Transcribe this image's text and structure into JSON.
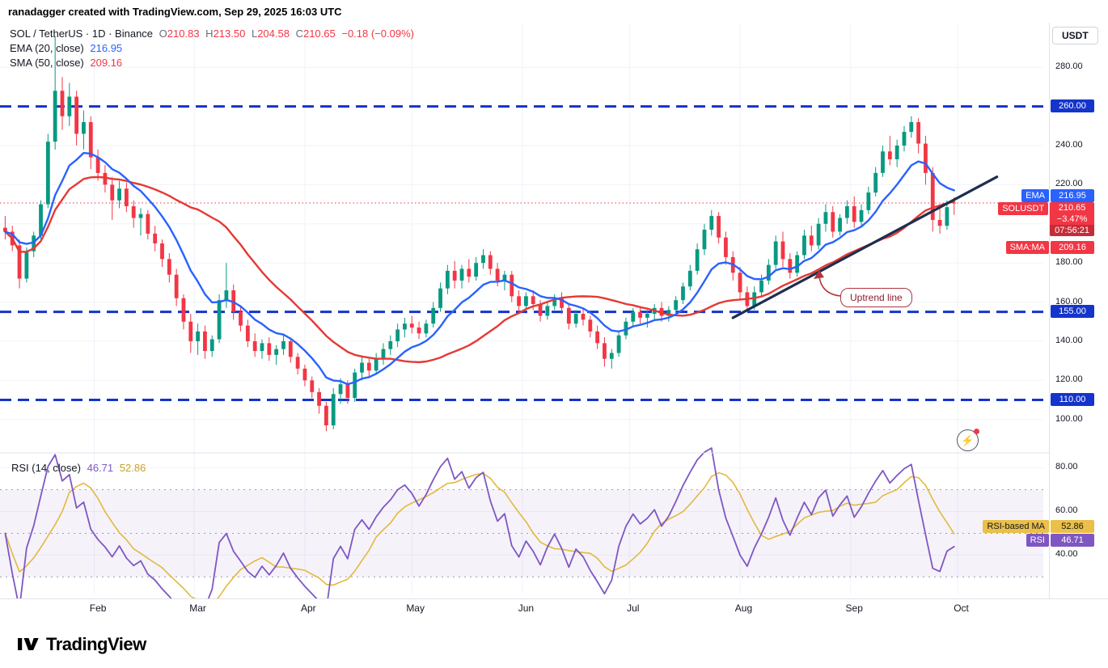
{
  "attribution": "ranadagger created with TradingView.com, Sep 29, 2025 16:03 UTC",
  "header": {
    "title": "SOL / TetherUS · 1D · Binance",
    "o_label": "O",
    "o_value": "210.83",
    "h_label": "H",
    "h_value": "213.50",
    "l_label": "L",
    "l_value": "204.58",
    "c_label": "C",
    "c_value": "210.65",
    "change": "−0.18 (−0.09%)",
    "ema_label": "EMA (20, close)",
    "ema_value": "216.95",
    "sma_label": "SMA (50, close)",
    "sma_value": "209.16"
  },
  "rsi_pane": {
    "legend_label": "RSI (14, close)",
    "rsi_value": "46.71",
    "ma_value": "52.86"
  },
  "axis": {
    "currency_button": "USDT"
  },
  "badges": {
    "ema_tag": "EMA",
    "ema_value": "216.95",
    "symbol_tag": "SOLUSDT",
    "symbol_price": "210.65",
    "symbol_change": "−3.47%",
    "symbol_countdown": "07:56:21",
    "sma_tag": "SMA:MA",
    "sma_value": "209.16",
    "level_260": "260.00",
    "level_155": "155.00",
    "level_110": "110.00",
    "rsi_ma_tag": "RSI-based MA",
    "rsi_ma_value": "52.86",
    "rsi_tag": "RSI",
    "rsi_value": "46.71"
  },
  "annotations": {
    "uptrend_label": "Uptrend line"
  },
  "icons": {
    "flash": "⚡"
  },
  "footer": {
    "logo_text": "TradingView"
  },
  "chart_data": {
    "type": "candlestick",
    "symbol": "SOLUSDT",
    "exchange": "Binance",
    "interval": "1D",
    "start_date": "2025-01-06",
    "days_per_candle": 2,
    "ohlc_format": [
      "open",
      "high",
      "low",
      "close"
    ],
    "candles": [
      [
        198,
        204,
        192,
        196
      ],
      [
        196,
        199,
        186,
        189
      ],
      [
        189,
        192,
        167,
        172
      ],
      [
        172,
        188,
        170,
        186
      ],
      [
        186,
        196,
        183,
        194
      ],
      [
        194,
        212,
        192,
        210
      ],
      [
        210,
        246,
        208,
        242
      ],
      [
        242,
        296,
        238,
        268
      ],
      [
        268,
        275,
        248,
        255
      ],
      [
        255,
        272,
        250,
        265
      ],
      [
        265,
        268,
        240,
        246
      ],
      [
        246,
        258,
        238,
        252
      ],
      [
        252,
        255,
        228,
        234
      ],
      [
        234,
        238,
        222,
        226
      ],
      [
        226,
        230,
        216,
        220
      ],
      [
        220,
        224,
        202,
        212
      ],
      [
        212,
        222,
        208,
        218
      ],
      [
        218,
        221,
        206,
        209
      ],
      [
        209,
        212,
        198,
        203
      ],
      [
        203,
        208,
        194,
        205
      ],
      [
        205,
        207,
        192,
        195
      ],
      [
        195,
        199,
        186,
        190
      ],
      [
        190,
        192,
        178,
        182
      ],
      [
        182,
        185,
        170,
        174
      ],
      [
        174,
        177,
        158,
        162
      ],
      [
        162,
        164,
        146,
        150
      ],
      [
        150,
        154,
        134,
        140
      ],
      [
        140,
        149,
        133,
        145
      ],
      [
        145,
        148,
        131,
        135
      ],
      [
        135,
        143,
        132,
        141
      ],
      [
        141,
        164,
        139,
        161
      ],
      [
        161,
        180,
        157,
        166
      ],
      [
        166,
        169,
        151,
        155
      ],
      [
        155,
        158,
        145,
        148
      ],
      [
        148,
        151,
        137,
        140
      ],
      [
        140,
        144,
        132,
        135
      ],
      [
        135,
        141,
        131,
        139
      ],
      [
        139,
        142,
        130,
        133
      ],
      [
        133,
        138,
        128,
        136
      ],
      [
        136,
        143,
        133,
        140
      ],
      [
        140,
        142,
        129,
        132
      ],
      [
        132,
        134,
        123,
        126
      ],
      [
        126,
        128,
        117,
        120
      ],
      [
        120,
        122,
        111,
        114
      ],
      [
        114,
        116,
        103,
        107
      ],
      [
        107,
        109,
        94,
        97
      ],
      [
        97,
        116,
        95,
        113
      ],
      [
        113,
        121,
        108,
        118
      ],
      [
        118,
        120,
        108,
        111
      ],
      [
        111,
        126,
        109,
        124
      ],
      [
        124,
        132,
        120,
        129
      ],
      [
        129,
        131,
        121,
        125
      ],
      [
        125,
        134,
        123,
        131
      ],
      [
        131,
        139,
        128,
        136
      ],
      [
        136,
        143,
        133,
        140
      ],
      [
        140,
        149,
        137,
        146
      ],
      [
        146,
        152,
        142,
        149
      ],
      [
        149,
        153,
        144,
        147
      ],
      [
        147,
        150,
        141,
        144
      ],
      [
        144,
        151,
        142,
        149
      ],
      [
        149,
        160,
        147,
        157
      ],
      [
        157,
        170,
        155,
        167
      ],
      [
        167,
        179,
        164,
        176
      ],
      [
        176,
        181,
        167,
        171
      ],
      [
        171,
        179,
        167,
        177
      ],
      [
        177,
        182,
        170,
        173
      ],
      [
        173,
        183,
        171,
        180
      ],
      [
        180,
        187,
        177,
        184
      ],
      [
        184,
        186,
        174,
        177
      ],
      [
        177,
        180,
        168,
        171
      ],
      [
        171,
        176,
        166,
        174
      ],
      [
        174,
        176,
        160,
        163
      ],
      [
        163,
        166,
        155,
        158
      ],
      [
        158,
        165,
        156,
        163
      ],
      [
        163,
        166,
        156,
        159
      ],
      [
        159,
        161,
        150,
        153
      ],
      [
        153,
        160,
        151,
        158
      ],
      [
        158,
        164,
        156,
        162
      ],
      [
        162,
        165,
        154,
        157
      ],
      [
        157,
        159,
        146,
        149
      ],
      [
        149,
        156,
        147,
        154
      ],
      [
        154,
        157,
        148,
        151
      ],
      [
        151,
        153,
        142,
        145
      ],
      [
        145,
        148,
        136,
        139
      ],
      [
        139,
        142,
        127,
        131
      ],
      [
        131,
        136,
        126,
        134
      ],
      [
        134,
        145,
        132,
        143
      ],
      [
        143,
        152,
        141,
        150
      ],
      [
        150,
        157,
        148,
        155
      ],
      [
        155,
        158,
        149,
        152
      ],
      [
        152,
        156,
        147,
        154
      ],
      [
        154,
        159,
        151,
        157
      ],
      [
        157,
        160,
        150,
        153
      ],
      [
        153,
        158,
        150,
        156
      ],
      [
        156,
        163,
        154,
        161
      ],
      [
        161,
        170,
        159,
        168
      ],
      [
        168,
        179,
        166,
        176
      ],
      [
        176,
        190,
        174,
        187
      ],
      [
        187,
        200,
        184,
        197
      ],
      [
        197,
        207,
        194,
        204
      ],
      [
        204,
        206,
        190,
        193
      ],
      [
        193,
        196,
        179,
        183
      ],
      [
        183,
        186,
        171,
        175
      ],
      [
        175,
        178,
        161,
        165
      ],
      [
        165,
        168,
        155,
        158
      ],
      [
        158,
        168,
        156,
        165
      ],
      [
        165,
        174,
        163,
        171
      ],
      [
        171,
        182,
        169,
        179
      ],
      [
        179,
        194,
        177,
        191
      ],
      [
        191,
        196,
        178,
        182
      ],
      [
        182,
        185,
        172,
        175
      ],
      [
        175,
        186,
        173,
        184
      ],
      [
        184,
        197,
        182,
        194
      ],
      [
        194,
        199,
        186,
        189
      ],
      [
        189,
        203,
        187,
        200
      ],
      [
        200,
        210,
        196,
        206
      ],
      [
        206,
        209,
        193,
        196
      ],
      [
        196,
        205,
        194,
        203
      ],
      [
        203,
        212,
        200,
        209
      ],
      [
        209,
        214,
        198,
        201
      ],
      [
        201,
        210,
        199,
        207
      ],
      [
        207,
        219,
        205,
        216
      ],
      [
        216,
        229,
        214,
        226
      ],
      [
        226,
        240,
        224,
        237
      ],
      [
        237,
        245,
        230,
        233
      ],
      [
        233,
        243,
        229,
        240
      ],
      [
        240,
        250,
        237,
        247
      ],
      [
        247,
        255,
        244,
        252
      ],
      [
        252,
        254,
        236,
        241
      ],
      [
        241,
        245,
        220,
        226
      ],
      [
        226,
        229,
        196,
        202
      ],
      [
        202,
        208,
        195,
        199
      ],
      [
        199,
        212,
        197,
        208.5
      ],
      [
        210.83,
        213.5,
        204.58,
        210.65
      ]
    ],
    "last": {
      "open": 210.83,
      "high": 213.5,
      "low": 204.58,
      "close": 210.65,
      "change": -0.18,
      "change_pct": -0.09
    },
    "ema": {
      "period": 20,
      "value": 216.95,
      "plot_span": 10
    },
    "sma": {
      "period": 50,
      "value": 209.16,
      "plot_span": 25
    },
    "rsi": {
      "period": 14,
      "value": 46.71,
      "ma_value": 52.86,
      "plot_period": 7,
      "plot_ma_span": 7,
      "ticks": [
        80,
        60,
        40
      ],
      "dashed_levels": [
        70,
        50,
        30
      ],
      "band": [
        30,
        70
      ],
      "range": [
        22,
        85
      ]
    },
    "levels": [
      260,
      155,
      110
    ],
    "current_price": 210.65,
    "price_ticks": [
      280,
      240,
      220,
      200,
      180,
      160,
      140,
      120,
      100
    ],
    "price_range": [
      85,
      302
    ],
    "months": [
      {
        "label": "Feb",
        "i": 13
      },
      {
        "label": "Mar",
        "i": 27
      },
      {
        "label": "Apr",
        "i": 42.5
      },
      {
        "label": "May",
        "i": 57.5
      },
      {
        "label": "Jun",
        "i": 73
      },
      {
        "label": "Jul",
        "i": 88
      },
      {
        "label": "Aug",
        "i": 103.5
      },
      {
        "label": "Sep",
        "i": 119
      },
      {
        "label": "Oct",
        "i": 134
      }
    ],
    "trendline": {
      "i1": 102,
      "p1": 152,
      "i2": 139,
      "p2": 224
    },
    "colors": {
      "up": "#089981",
      "down": "#f23645",
      "ema": "#2962ff",
      "sma": "#e53935",
      "levels": "#1434cb",
      "trend": "#1e2e4f",
      "rsi": "#7e57c2",
      "rsi_ma": "#e3b93c",
      "band_fill": "rgba(126,87,194,0.08)",
      "grid": "#f0f3fa",
      "separator": "#e0e3eb"
    }
  }
}
